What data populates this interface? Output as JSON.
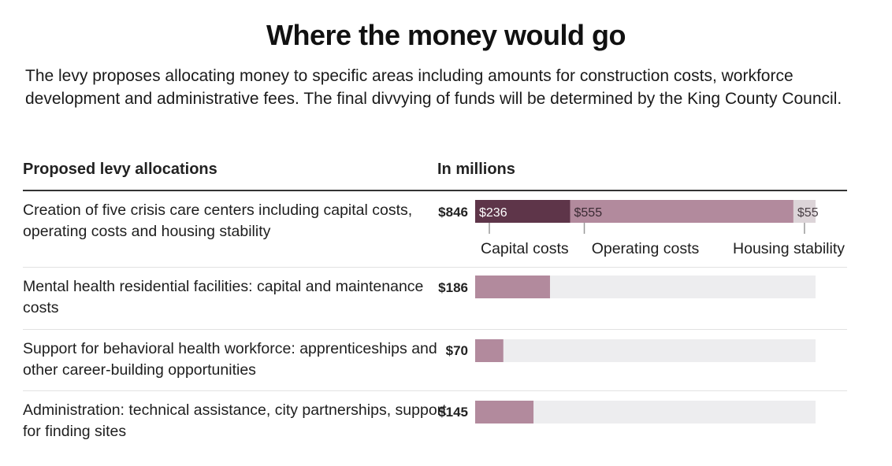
{
  "title": "Where the money would go",
  "intro": "The levy proposes allocating money to specific areas including amounts for construction costs, workforce development and administrative fees. The final divvying of funds will be determined by the King County Council.",
  "headers": {
    "label_column": "Proposed levy allocations",
    "value_column": "In millions"
  },
  "colors": {
    "capital": "#5e3549",
    "operating": "#b28a9d",
    "housing": "#dcd4d8",
    "bar": "#b28a9d",
    "track": "#ededef"
  },
  "chart_data": {
    "type": "bar",
    "orientation": "horizontal",
    "title": "Where the money would go",
    "unit": "millions of dollars",
    "xlim": [
      0,
      846
    ],
    "categories": [
      "Creation of five crisis care centers including capital costs, operating costs and housing stability",
      "Mental health residential facilities: capital and maintenance costs",
      "Support for behavioral health workforce: apprenticeships and other career-building opportunities",
      "Administration: technical assistance, city partnerships, support for finding sites"
    ],
    "totals": [
      "$846",
      "$186",
      "$70",
      "$145"
    ],
    "values": [
      846,
      186,
      70,
      145
    ],
    "stacked_first_row": {
      "segments": [
        {
          "name": "Capital costs",
          "value": 236,
          "label": "$236"
        },
        {
          "name": "Operating costs",
          "value": 555,
          "label": "$555"
        },
        {
          "name": "Housing stability",
          "value": 55,
          "label": "$55"
        }
      ]
    }
  }
}
